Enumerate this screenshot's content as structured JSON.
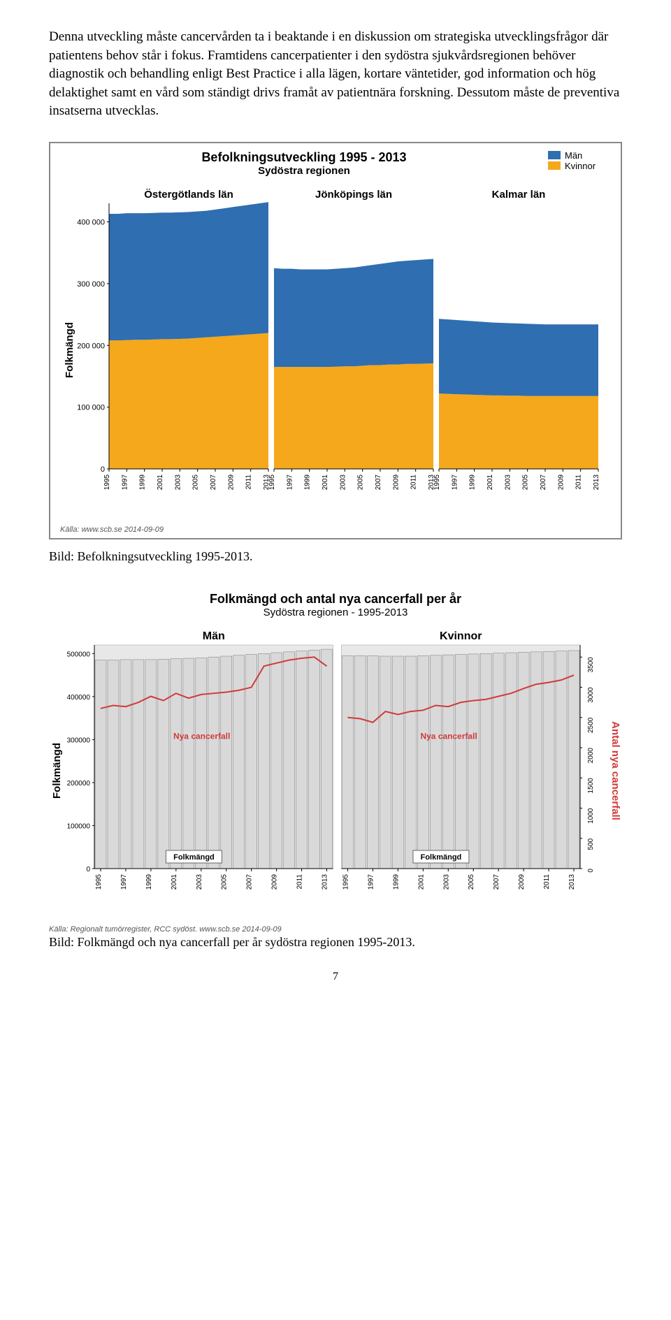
{
  "intro": {
    "p1": "Denna utveckling måste cancervården ta i beaktande i en diskussion om strategiska utvecklingsfrågor där patientens behov står i fokus. Framtidens cancerpatienter i den sydöstra sjukvårdsregionen behöver diagnostik och behandling enligt Best Practice i alla lägen, kortare väntetider, god information och hög delaktighet samt en vård som ständigt drivs framåt av patientnära forskning. Dessutom måste de preventiva insatserna utvecklas."
  },
  "chart1": {
    "type": "stacked-area",
    "title": "Befolkningsutveckling 1995 - 2013",
    "subtitle": "Sydöstra regionen",
    "legend": [
      {
        "label": "Män",
        "color": "#2f6eb0"
      },
      {
        "label": "Kvinnor",
        "color": "#f5a81c"
      }
    ],
    "ylabel": "Folkmängd",
    "ylim": [
      0,
      430000
    ],
    "ytick_step": 100000,
    "ytick_labels": [
      "0",
      "100 000",
      "200 000",
      "300 000",
      "400 000"
    ],
    "xticks": [
      1995,
      1997,
      1999,
      2001,
      2003,
      2005,
      2007,
      2009,
      2011,
      2013
    ],
    "panels": [
      {
        "title": "Östergötlands län",
        "years": [
          1995,
          1996,
          1997,
          1998,
          1999,
          2000,
          2001,
          2002,
          2003,
          2004,
          2005,
          2006,
          2007,
          2008,
          2009,
          2010,
          2011,
          2012,
          2013
        ],
        "women": [
          208000,
          208000,
          208500,
          209000,
          209000,
          209500,
          210000,
          210000,
          210500,
          211000,
          212000,
          213000,
          214000,
          215000,
          216000,
          217000,
          218000,
          219000,
          220000
        ],
        "total": [
          413000,
          413000,
          414000,
          414000,
          414000,
          414500,
          415000,
          415000,
          415500,
          416000,
          417000,
          418000,
          420000,
          422000,
          424000,
          426000,
          428000,
          430000,
          432000
        ]
      },
      {
        "title": "Jönköpings län",
        "years": [
          1995,
          1996,
          1997,
          1998,
          1999,
          2000,
          2001,
          2002,
          2003,
          2004,
          2005,
          2006,
          2007,
          2008,
          2009,
          2010,
          2011,
          2012,
          2013
        ],
        "women": [
          165000,
          165000,
          165000,
          165000,
          165000,
          165000,
          165000,
          165500,
          166000,
          166000,
          167000,
          168000,
          168000,
          169000,
          169000,
          170000,
          170000,
          170500,
          171000
        ],
        "total": [
          325000,
          324000,
          324000,
          323000,
          323000,
          323000,
          323000,
          324000,
          325000,
          326000,
          328000,
          330000,
          332000,
          334000,
          336000,
          337000,
          338000,
          339000,
          340000
        ]
      },
      {
        "title": "Kalmar län",
        "years": [
          1995,
          1996,
          1997,
          1998,
          1999,
          2000,
          2001,
          2002,
          2003,
          2004,
          2005,
          2006,
          2007,
          2008,
          2009,
          2010,
          2011,
          2012,
          2013
        ],
        "women": [
          122000,
          121500,
          121000,
          120500,
          120000,
          119500,
          119000,
          119000,
          118500,
          118500,
          118000,
          118000,
          118000,
          118000,
          118000,
          118000,
          118000,
          118000,
          118000
        ],
        "total": [
          243000,
          242000,
          241000,
          240000,
          239000,
          238000,
          237000,
          236500,
          236000,
          235500,
          235000,
          234500,
          234000,
          234000,
          234000,
          234000,
          234000,
          234000,
          234000
        ]
      }
    ],
    "colors": {
      "men": "#2f6eb0",
      "women": "#f5a81c",
      "axis": "#000000",
      "grid": "#bbbbbb"
    },
    "source": "Källa: www.scb.se 2014-09-09",
    "caption": "Bild: Befolkningsutveckling 1995-2013."
  },
  "chart2": {
    "type": "bar+line",
    "title": "Folkmängd och antal nya cancerfall per år",
    "subtitle": "Sydöstra regionen - 1995-2013",
    "ylabel_left": "Folkmängd",
    "ylabel_right": "Antal nya cancerfall",
    "ylabel_right_color": "#d13a3a",
    "ylim_left": [
      0,
      520000
    ],
    "ytick_left_step": 100000,
    "ytick_left_labels": [
      "0",
      "100000",
      "200000",
      "300000",
      "400000",
      "500000"
    ],
    "ylim_right": [
      0,
      3700
    ],
    "ytick_right_step": 500,
    "ytick_right_labels": [
      "0",
      "500",
      "1000",
      "1500",
      "2000",
      "2500",
      "3000",
      "3500"
    ],
    "xticks": [
      1995,
      1997,
      1999,
      2001,
      2003,
      2005,
      2007,
      2009,
      2011,
      2013
    ],
    "panels": [
      {
        "title": "Män",
        "years": [
          1995,
          1996,
          1997,
          1998,
          1999,
          2000,
          2001,
          2002,
          2003,
          2004,
          2005,
          2006,
          2007,
          2008,
          2009,
          2010,
          2011,
          2012,
          2013
        ],
        "pop": [
          485000,
          485000,
          486000,
          486000,
          486000,
          487000,
          488000,
          489000,
          490000,
          492000,
          494000,
          496000,
          498000,
          500000,
          502000,
          504000,
          506000,
          508000,
          510000
        ],
        "cancer": [
          2650,
          2700,
          2680,
          2750,
          2850,
          2780,
          2900,
          2820,
          2880,
          2900,
          2920,
          2950,
          3000,
          3350,
          3400,
          3450,
          3480,
          3500,
          3350
        ],
        "line_label": "Nya cancerfall",
        "bar_label": "Folkmängd"
      },
      {
        "title": "Kvinnor",
        "years": [
          1995,
          1996,
          1997,
          1998,
          1999,
          2000,
          2001,
          2002,
          2003,
          2004,
          2005,
          2006,
          2007,
          2008,
          2009,
          2010,
          2011,
          2012,
          2013
        ],
        "pop": [
          495000,
          495000,
          495000,
          494000,
          494000,
          494000,
          495000,
          496000,
          497000,
          498000,
          499000,
          500000,
          501000,
          502000,
          503000,
          504000,
          505000,
          506000,
          507000
        ],
        "cancer": [
          2500,
          2480,
          2420,
          2600,
          2550,
          2600,
          2620,
          2700,
          2680,
          2750,
          2780,
          2800,
          2850,
          2900,
          2980,
          3050,
          3080,
          3120,
          3200
        ],
        "line_label": "Nya cancerfall",
        "bar_label": "Folkmängd"
      }
    ],
    "colors": {
      "bar_fill": "#d9d9d9",
      "bar_stroke": "#888888",
      "line": "#d13a3a",
      "panel_bg": "#e8e8e8",
      "axis": "#000000"
    },
    "source": "Källa: Regionalt tumörregister, RCC sydöst. www.scb.se 2014-09-09",
    "caption": "Bild: Folkmängd och nya cancerfall per år sydöstra regionen 1995-2013."
  },
  "page_number": "7"
}
